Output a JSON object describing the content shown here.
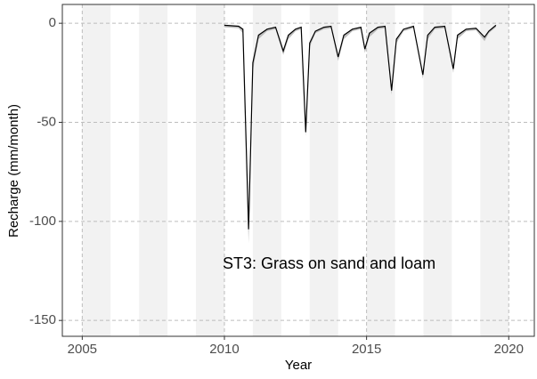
{
  "chart_data": {
    "type": "line",
    "x_label": "Year",
    "y_label": "Recharge (mm/month)",
    "annotation": "ST3: Grass on sand and loam",
    "xlim": [
      2004.3,
      2020.9
    ],
    "ylim": [
      -158,
      9.5
    ],
    "xticks": [
      2005,
      2010,
      2015,
      2020
    ],
    "yticks": [
      0,
      -50,
      -100,
      -150
    ],
    "grid": true,
    "shaded_bands": [
      [
        2005,
        2006
      ],
      [
        2007,
        2008
      ],
      [
        2009,
        2010
      ],
      [
        2011,
        2012
      ],
      [
        2013,
        2014
      ],
      [
        2015,
        2016
      ],
      [
        2017,
        2018
      ],
      [
        2019,
        2020
      ]
    ],
    "x": [
      2010.0,
      2010.5,
      2010.65,
      2010.85,
      2011.0,
      2011.2,
      2011.5,
      2011.8,
      2012.07,
      2012.25,
      2012.5,
      2012.7,
      2012.86,
      2013.0,
      2013.2,
      2013.5,
      2013.75,
      2014.0,
      2014.2,
      2014.5,
      2014.8,
      2014.94,
      2015.1,
      2015.4,
      2015.65,
      2015.88,
      2016.05,
      2016.3,
      2016.65,
      2016.98,
      2017.15,
      2017.4,
      2017.75,
      2018.05,
      2018.2,
      2018.5,
      2018.85,
      2019.15,
      2019.3,
      2019.55
    ],
    "series": [
      {
        "color": "#000000",
        "values": [
          -1,
          -1.5,
          -3,
          -104,
          -20,
          -6,
          -3,
          -2,
          -14,
          -6,
          -3,
          -2,
          -55,
          -10,
          -4,
          -2,
          -1.5,
          -17,
          -6,
          -3,
          -2,
          -13,
          -5,
          -2,
          -1.5,
          -34,
          -8,
          -3,
          -1.5,
          -26,
          -6,
          -2,
          -1.5,
          -23,
          -6,
          -3,
          -2.5,
          -7,
          -4,
          -1
        ],
        "ribbon_lower": [
          -2,
          -2.5,
          -5,
          -111,
          -24,
          -8,
          -4,
          -3,
          -16,
          -8,
          -4,
          -3,
          -57,
          -12,
          -5,
          -3,
          -2.5,
          -19,
          -8,
          -4,
          -3,
          -15,
          -7,
          -3,
          -2.5,
          -36,
          -10,
          -4,
          -2.5,
          -28,
          -8,
          -3,
          -2.5,
          -25,
          -8,
          -4,
          -3.5,
          -9,
          -5,
          -2
        ],
        "ribbon_color": "#bdbdbd"
      }
    ]
  }
}
